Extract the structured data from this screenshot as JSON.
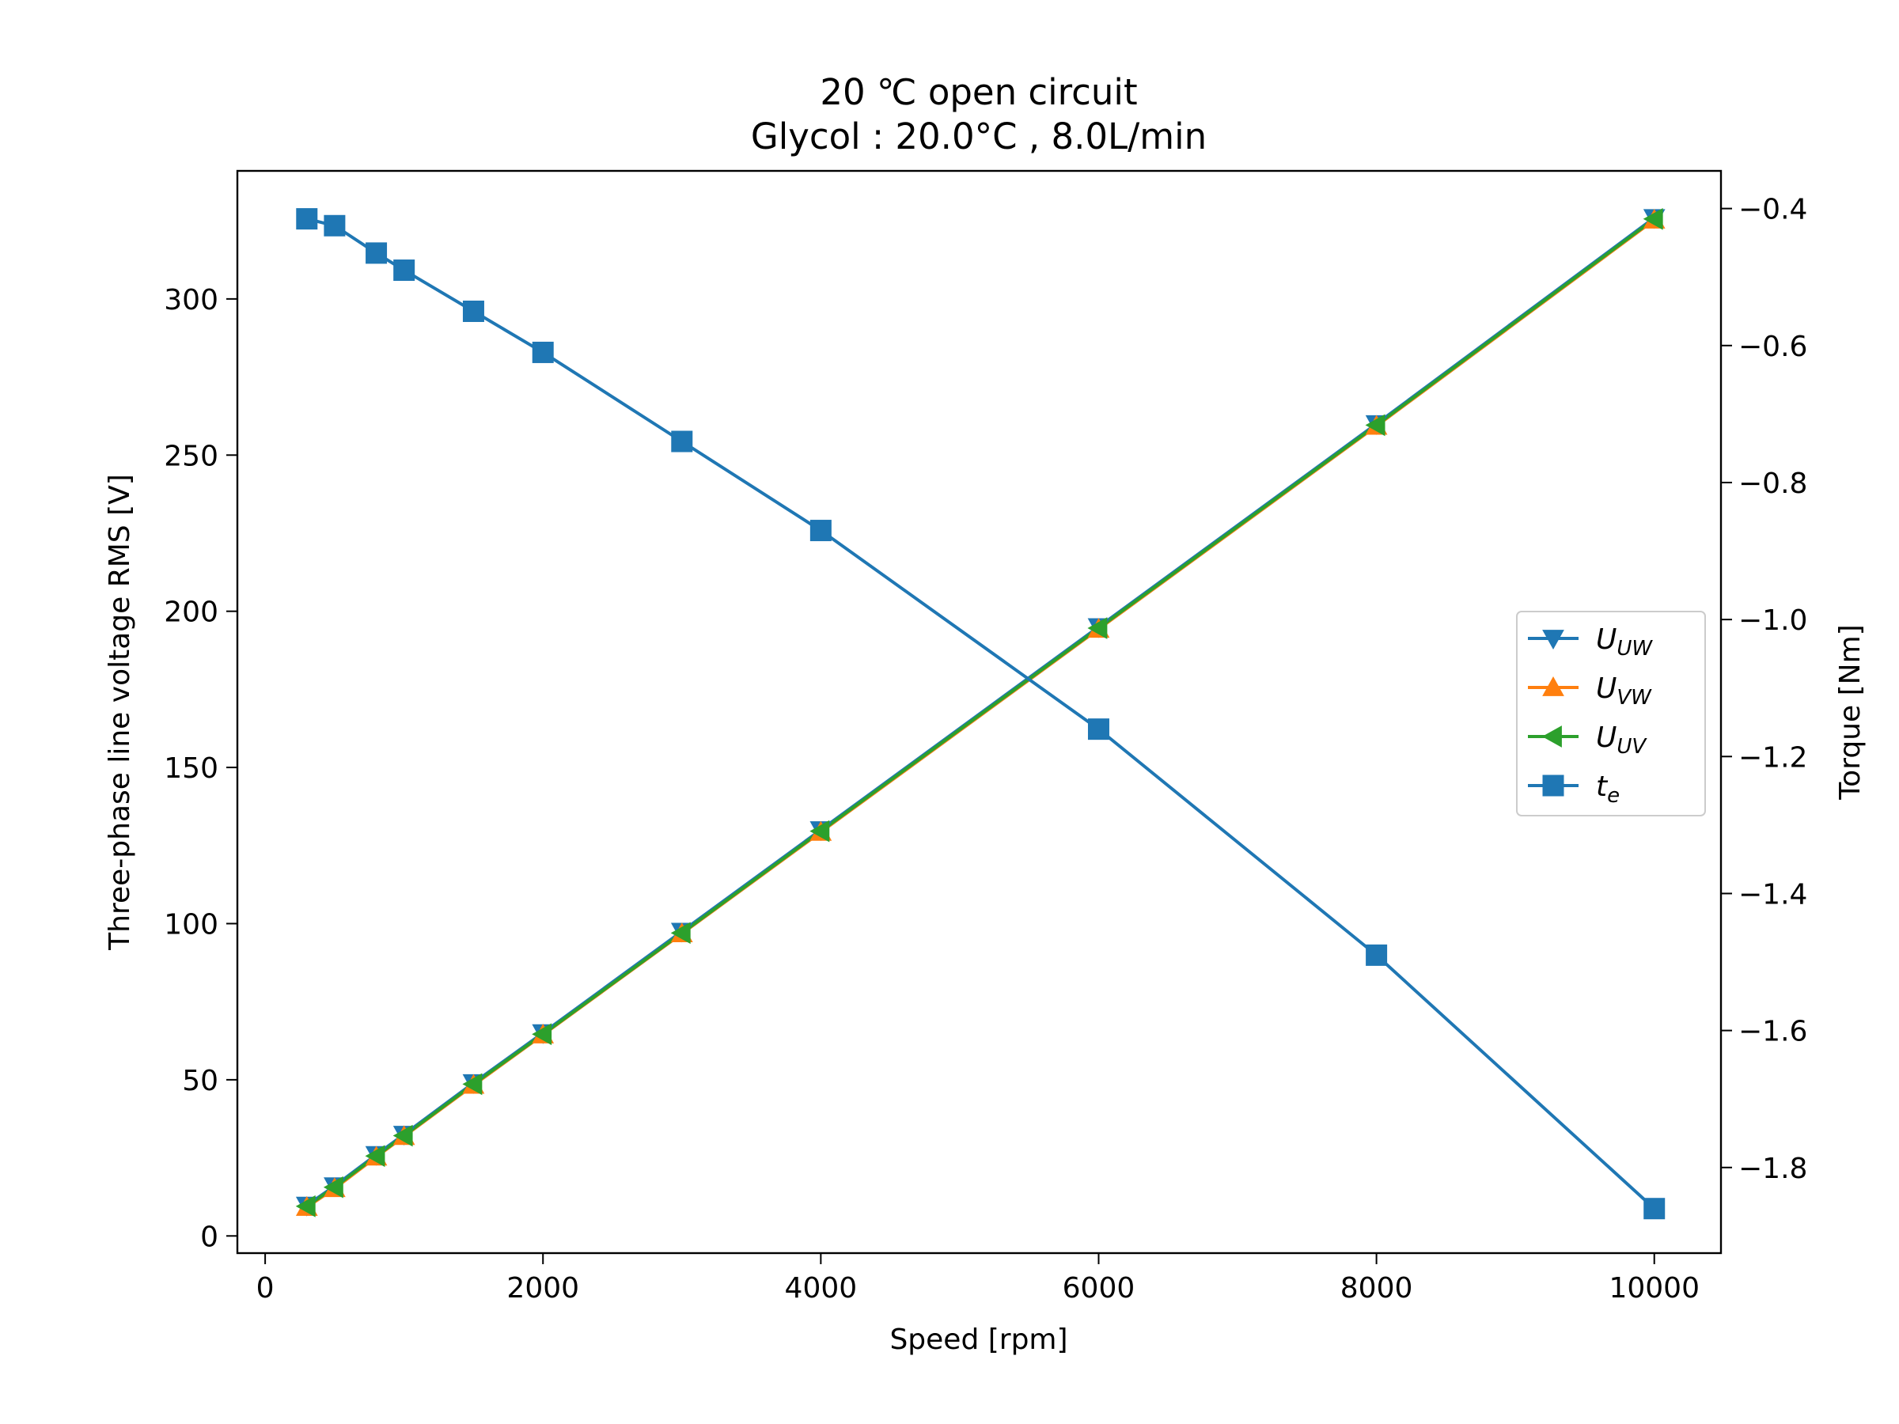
{
  "chart_data": {
    "type": "line",
    "title": "20 ℃ open circuit",
    "subtitle": "Glycol : 20.0°C , 8.0L/min",
    "xlabel": "Speed [rpm]",
    "ylabel": "Three-phase line voltage RMS [V]",
    "y2label": "Torque [Nm]",
    "xlim": [
      -200,
      10480
    ],
    "ylim": [
      -5.5,
      341
    ],
    "y2lim": [
      -1.925,
      -0.345
    ],
    "xticks": [
      0,
      2000,
      4000,
      6000,
      8000,
      10000
    ],
    "yticks": [
      0,
      50,
      100,
      150,
      200,
      250,
      300
    ],
    "y2ticks": [
      -1.8,
      -1.6,
      -1.4,
      -1.2,
      -1.0,
      -0.8,
      -0.6,
      -0.4
    ],
    "ytick_labels": [
      "0",
      "50",
      "100",
      "150",
      "200",
      "250",
      "300"
    ],
    "xtick_labels": [
      "0",
      "2000",
      "4000",
      "6000",
      "8000",
      "10000"
    ],
    "y2tick_labels": [
      "−1.8",
      "−1.6",
      "−1.4",
      "−1.2",
      "−1.0",
      "−0.8",
      "−0.6",
      "−0.4"
    ],
    "grid": false,
    "legend_position": "center-right",
    "x": [
      300,
      500,
      800,
      1000,
      1500,
      2000,
      3000,
      4000,
      6000,
      8000,
      10000
    ],
    "series": [
      {
        "label_main": "U",
        "label_sub": "UW",
        "axis": "left",
        "marker": "triangle-down",
        "color": "#1f77b4",
        "values": [
          9.8,
          16,
          26,
          32.5,
          49,
          65,
          97.5,
          130,
          195,
          260,
          326
        ]
      },
      {
        "label_main": "U",
        "label_sub": "VW",
        "axis": "left",
        "marker": "triangle-up",
        "color": "#ff7f0e",
        "values": [
          9.2,
          15.2,
          25.3,
          31.9,
          48.3,
          64.4,
          96.8,
          129.3,
          194.3,
          259.3,
          325.3
        ]
      },
      {
        "label_main": "U",
        "label_sub": "UV",
        "axis": "left",
        "marker": "triangle-left",
        "color": "#2ca02c",
        "values": [
          9.5,
          15.6,
          25.6,
          32.1,
          48.6,
          64.6,
          97,
          129.6,
          194.6,
          259.6,
          325.6
        ]
      },
      {
        "label_main": "t",
        "label_sub": "e",
        "axis": "right",
        "marker": "square",
        "color": "#1f77b4",
        "values": [
          -0.415,
          -0.425,
          -0.465,
          -0.49,
          -0.55,
          -0.61,
          -0.74,
          -0.87,
          -1.16,
          -1.49,
          -1.86
        ]
      }
    ]
  }
}
